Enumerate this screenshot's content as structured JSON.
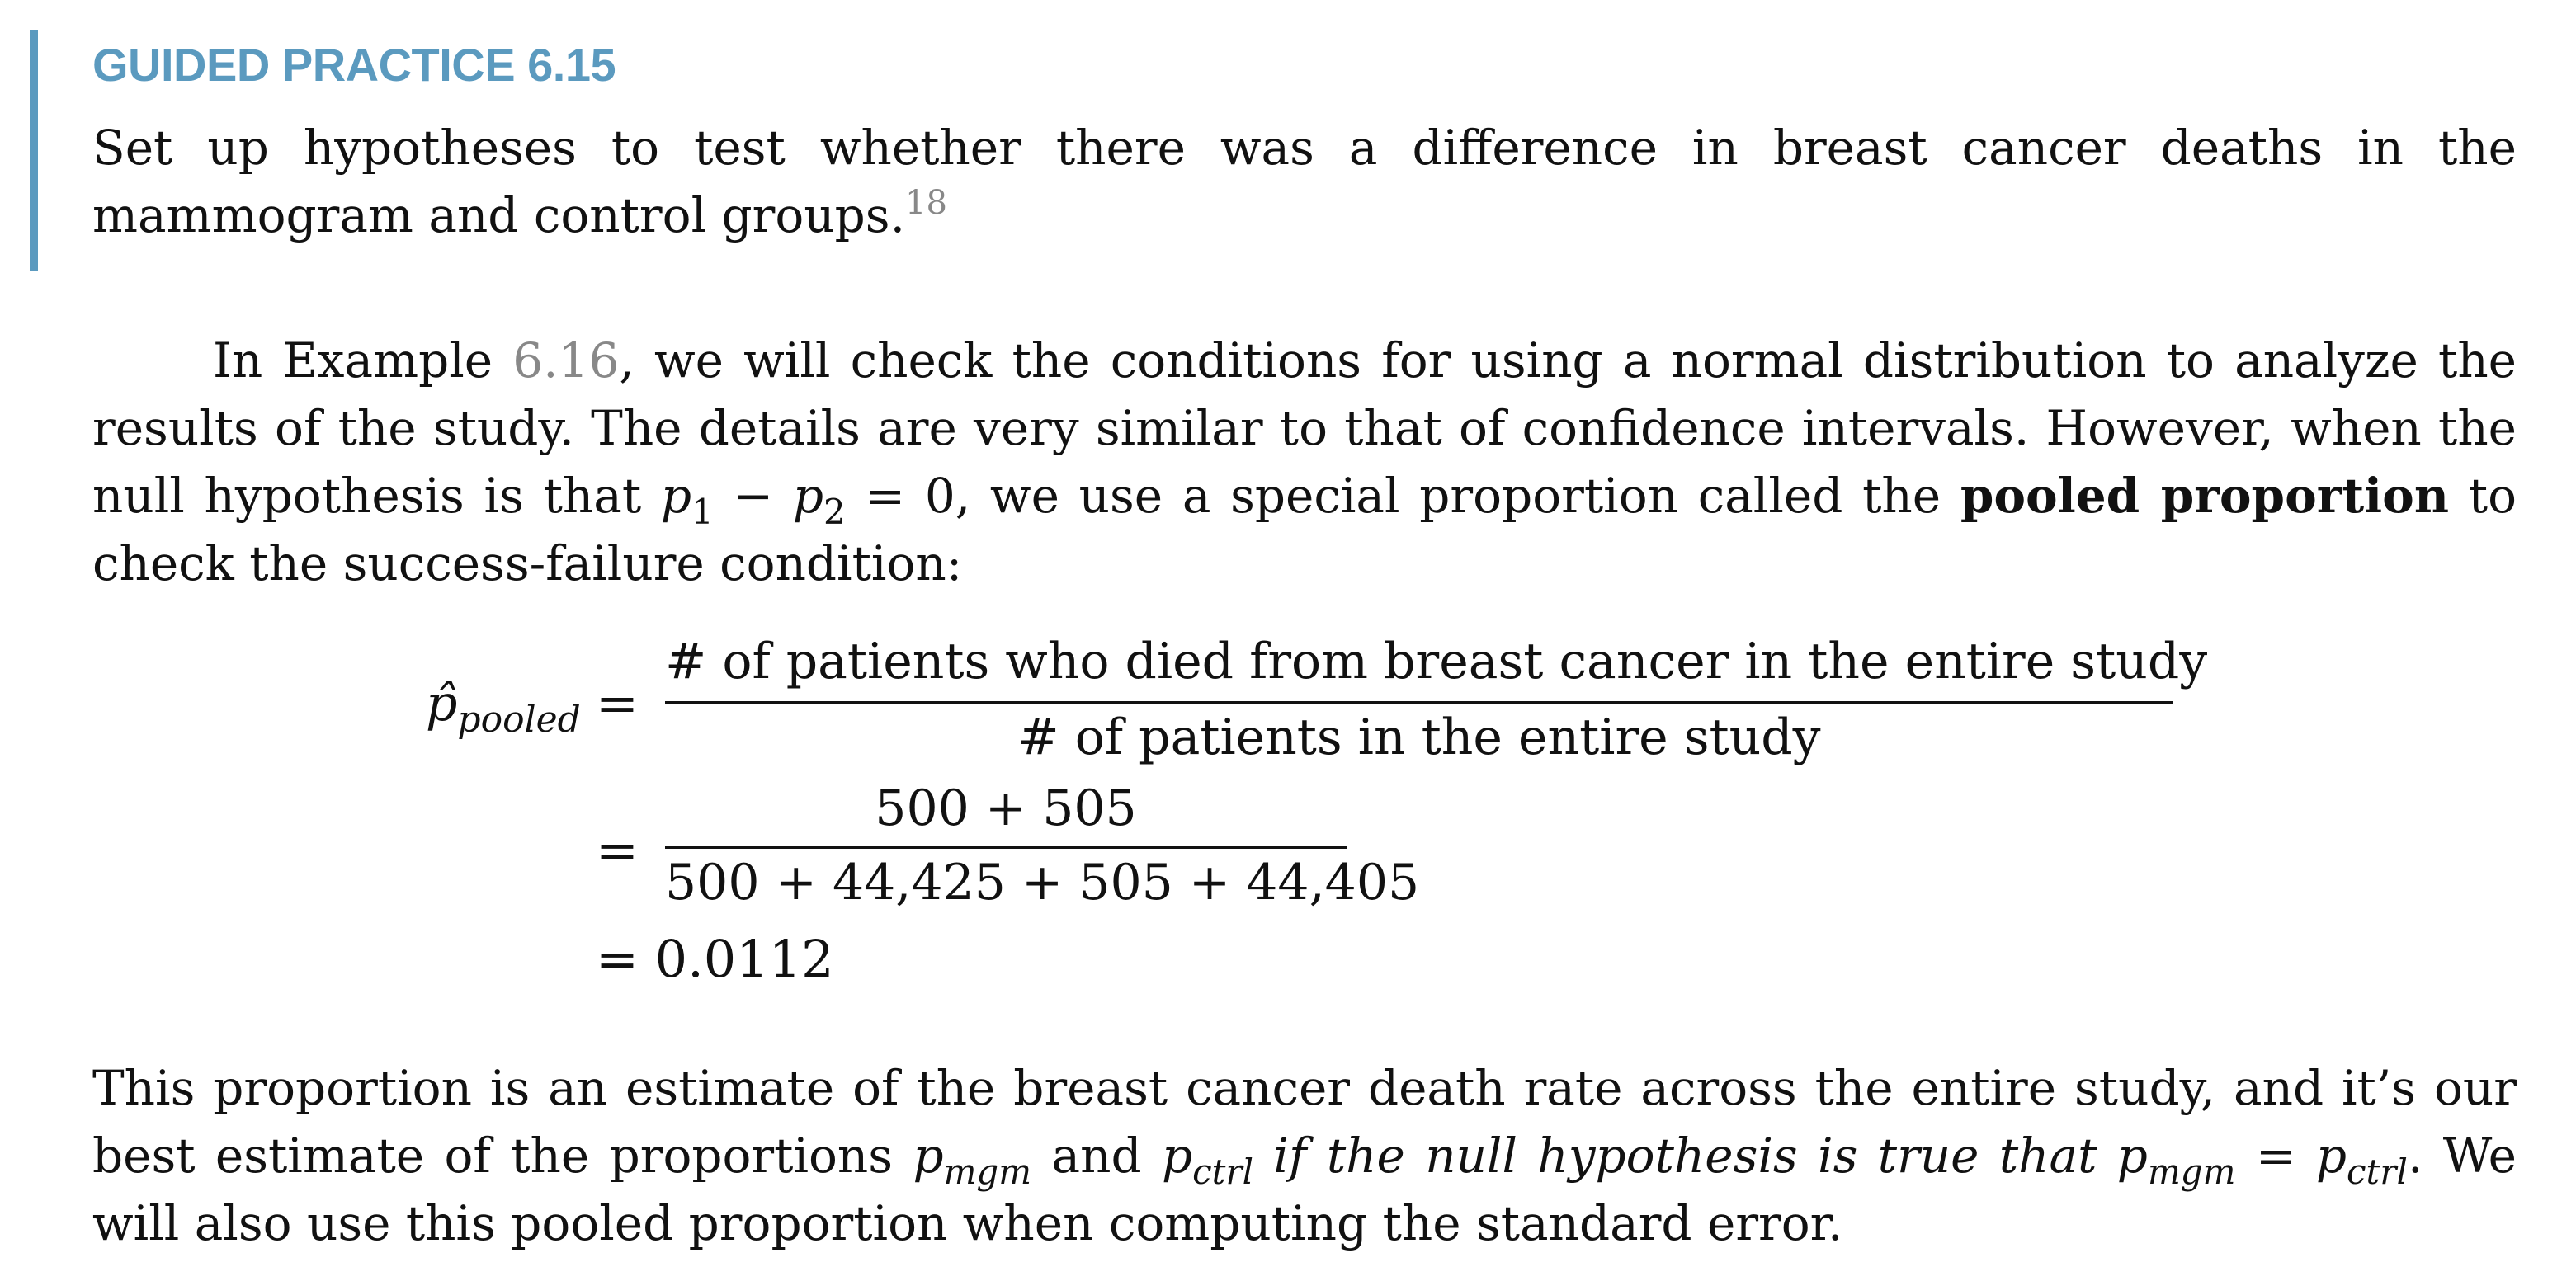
{
  "guided_practice": {
    "title": "GUIDED PRACTICE 6.15",
    "text": "Set up hypotheses to test whether there was a difference in breast cancer deaths in the mammogram and control groups.",
    "footnote_ref": "18"
  },
  "paragraph1": {
    "part1": "In Example ",
    "example_ref": "6.16",
    "part2": ", we will check the conditions for using a normal distribution to analyze the results of the study. The details are very similar to that of confidence intervals. However, when the null hypothesis is that ",
    "math_p1": "p",
    "math_p1_sub": "1",
    "math_minus": " − ",
    "math_p2": "p",
    "math_p2_sub": "2",
    "math_eq_zero": " = 0",
    "part3": ", we use a special proportion called the ",
    "bold_term": "pooled proportion",
    "part4": " to check the success-failure condition:"
  },
  "equation": {
    "lhs_symbol": "p̂",
    "lhs_sub": "pooled",
    "eq": "=",
    "frac1_num": "# of patients who died from breast cancer in the entire study",
    "frac1_den": "# of patients in the entire study",
    "frac2_num": "500 + 505",
    "frac2_den": "500 + 44,425 + 505 + 44,405",
    "result": "= 0.0112"
  },
  "paragraph2": {
    "part1": "This proportion is an estimate of the breast cancer death rate across the entire study, and it’s our best estimate of the proportions ",
    "p_mgm": "p",
    "p_mgm_sub": "mgm",
    "and": " and ",
    "p_ctrl": "p",
    "p_ctrl_sub": "ctrl",
    "italic_part": " if the null hypothesis is true that ",
    "p_mgm2": "p",
    "p_mgm2_sub": "mgm",
    "eq": " = ",
    "p_ctrl2": "p",
    "p_ctrl2_sub": "ctrl",
    "period": ".",
    "part2": " We will also use this pooled proportion when computing the standard error."
  },
  "colors": {
    "accent": "#5b9abf",
    "reference": "#888888",
    "text": "#111111"
  }
}
